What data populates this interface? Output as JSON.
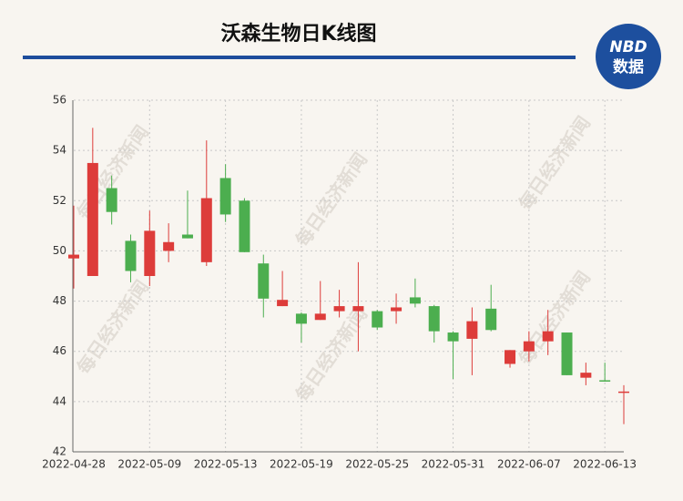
{
  "chart_data": {
    "type": "candlestick",
    "title": "沃森生物日K线图",
    "logo": {
      "top": "NBD",
      "bottom": "数据"
    },
    "watermark": "每日经济新闻",
    "categories": [
      "2022-04-28",
      null,
      null,
      null,
      "2022-05-09",
      null,
      null,
      null,
      "2022-05-13",
      null,
      null,
      null,
      "2022-05-19",
      null,
      null,
      null,
      "2022-05-25",
      null,
      null,
      null,
      "2022-05-31",
      null,
      null,
      null,
      "2022-06-07",
      null,
      null,
      null,
      "2022-06-13",
      null
    ],
    "open": [
      49.7,
      49.0,
      52.5,
      50.4,
      49.0,
      50.0,
      50.65,
      49.55,
      52.9,
      52.0,
      49.5,
      47.8,
      47.5,
      47.25,
      47.6,
      47.6,
      47.6,
      47.6,
      48.15,
      47.8,
      46.75,
      46.5,
      47.7,
      45.5,
      46.0,
      46.4,
      46.75,
      44.95,
      44.85,
      44.35
    ],
    "high": [
      51.8,
      54.9,
      53.0,
      50.65,
      51.6,
      51.1,
      52.4,
      54.4,
      53.45,
      52.1,
      49.85,
      49.2,
      47.55,
      48.8,
      48.45,
      49.55,
      47.65,
      48.3,
      48.9,
      47.85,
      46.8,
      47.75,
      48.65,
      46.05,
      46.8,
      47.65,
      46.75,
      45.55,
      45.55,
      44.65
    ],
    "low": [
      48.5,
      49.0,
      51.05,
      48.75,
      48.6,
      49.55,
      50.5,
      49.4,
      51.15,
      49.95,
      47.35,
      47.8,
      46.35,
      47.25,
      47.35,
      46.0,
      46.85,
      47.1,
      47.75,
      46.35,
      44.9,
      45.05,
      46.8,
      45.35,
      45.6,
      45.85,
      45.05,
      44.65,
      44.8,
      43.1
    ],
    "close": [
      49.85,
      53.5,
      51.55,
      49.2,
      50.8,
      50.35,
      50.5,
      52.1,
      51.45,
      49.95,
      48.1,
      48.05,
      47.1,
      47.5,
      47.8,
      47.8,
      46.95,
      47.75,
      47.9,
      46.8,
      46.4,
      47.2,
      46.85,
      46.05,
      46.4,
      46.8,
      45.05,
      45.15,
      44.8,
      44.4
    ],
    "up_color": "#dd3c3a",
    "down_color": "#4cae4f",
    "ylim": [
      42,
      56
    ],
    "yticks": [
      42,
      44,
      46,
      48,
      50,
      52,
      54,
      56
    ],
    "grid": true
  }
}
